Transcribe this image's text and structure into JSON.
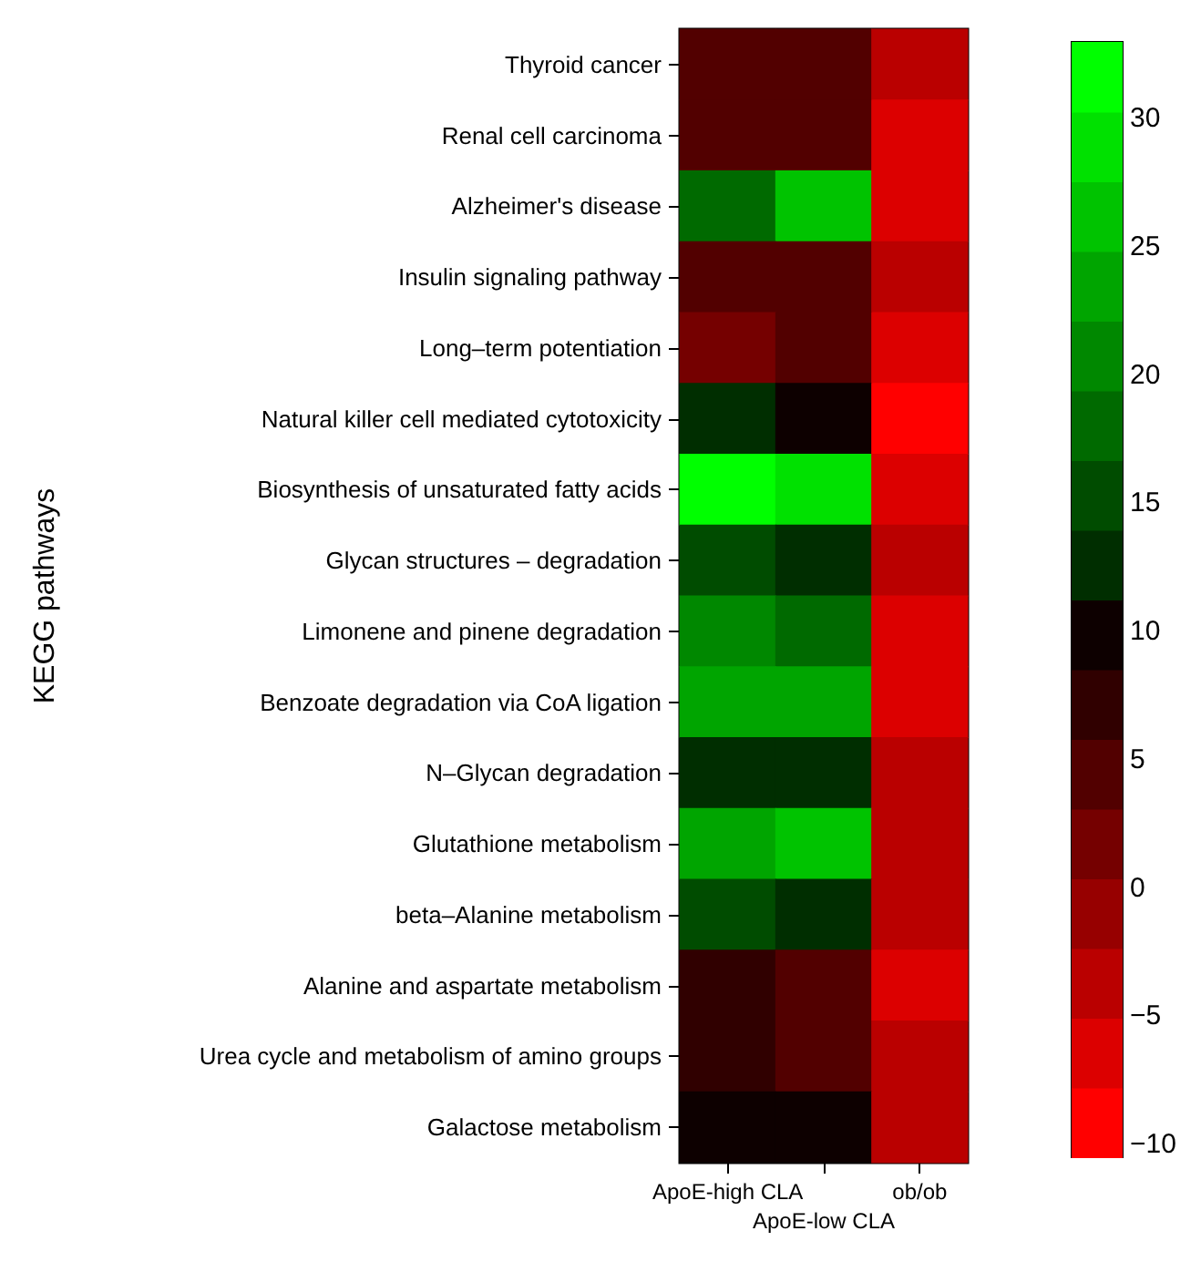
{
  "chart_data": {
    "type": "heatmap",
    "ylabel": "KEGG pathways",
    "categories": [
      "ApoE-high CLA",
      "ApoE-low CLA",
      "ob/ob"
    ],
    "y_categories": [
      "Thyroid cancer",
      "Renal cell carcinoma",
      "Alzheimer's disease",
      "Insulin signaling pathway",
      "Long–term potentiation",
      "Natural killer cell mediated cytotoxicity",
      "Biosynthesis of unsaturated fatty acids",
      "Glycan structures – degradation",
      "Limonene and pinene degradation",
      "Benzoate degradation via CoA ligation",
      "N–Glycan degradation",
      "Glutathione metabolism",
      "beta–Alanine metabolism",
      "Alanine and aspartate metabolism",
      "Urea cycle and metabolism of amino groups",
      "Galactose metabolism"
    ],
    "cells": [
      [
        4.4,
        4.4,
        -3.7
      ],
      [
        4.4,
        4.4,
        -6.4
      ],
      [
        18,
        26.2,
        -6.4
      ],
      [
        4.4,
        4.4,
        -3.7
      ],
      [
        1.7,
        4.4,
        -6.4
      ],
      [
        12.6,
        9.9,
        -9.1
      ],
      [
        31.6,
        28.9,
        -6.4
      ],
      [
        15.3,
        12.6,
        -3.7
      ],
      [
        20.7,
        18,
        -6.4
      ],
      [
        23.5,
        23.5,
        -6.4
      ],
      [
        12.6,
        12.6,
        -3.7
      ],
      [
        23.5,
        26.2,
        -3.7
      ],
      [
        15.3,
        12.6,
        -3.7
      ],
      [
        7.1,
        4.4,
        -6.4
      ],
      [
        7.1,
        4.4,
        -3.7
      ],
      [
        9.9,
        9.9,
        -3.7
      ]
    ],
    "clim": [
      -10.5,
      33
    ],
    "cticks": [
      -10,
      -5,
      0,
      5,
      10,
      15,
      20,
      25,
      30
    ]
  }
}
